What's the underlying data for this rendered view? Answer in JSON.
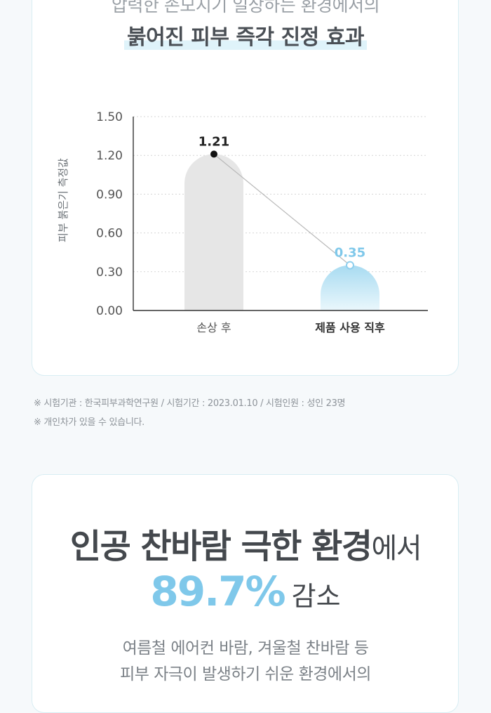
{
  "section1": {
    "headline_top": "압력한 손모지기 일상하는 환경에서의",
    "headline_main": "붉어진 피부 즉각 진정 효과"
  },
  "chart_data": {
    "type": "bar",
    "ylabel": "피부 붉은기 측정값",
    "xlabel": "",
    "ylim": [
      0,
      1.5
    ],
    "yticks": [
      0,
      0.3,
      0.6,
      0.9,
      1.2,
      1.5
    ],
    "ytick_labels": [
      "0.00",
      "0.30",
      "0.60",
      "0.90",
      "1.20",
      "1.50"
    ],
    "categories": [
      "손상 후",
      "제품 사용 직후"
    ],
    "values": [
      1.21,
      0.35
    ],
    "value_labels": [
      "1.21",
      "0.35"
    ],
    "bar_colors": [
      "#e6e6e6",
      "#a8dbf1"
    ],
    "grid": true,
    "connector_line": true
  },
  "notes": [
    "※ 시험기관 : 한국피부과학연구원 / 시험기간 : 2023.01.10 / 시험인원 : 성인 23명",
    "※ 개인차가 있을 수 있습니다."
  ],
  "section2": {
    "title_bold": "인공 찬바람 극한 환경",
    "title_suffix": "에서",
    "percent": "89.7%",
    "percent_suffix": "감소",
    "desc_line1": "여름철 에어컨 바람, 겨울철 찬바람 등",
    "desc_line2": "피부 자극이 발생하기 쉬운 환경에서의"
  },
  "colors": {
    "accent": "#7fc8ea",
    "card_border": "#d8edf3",
    "bar_before": "#e6e6e6",
    "bar_after": "#a8dbf1"
  }
}
